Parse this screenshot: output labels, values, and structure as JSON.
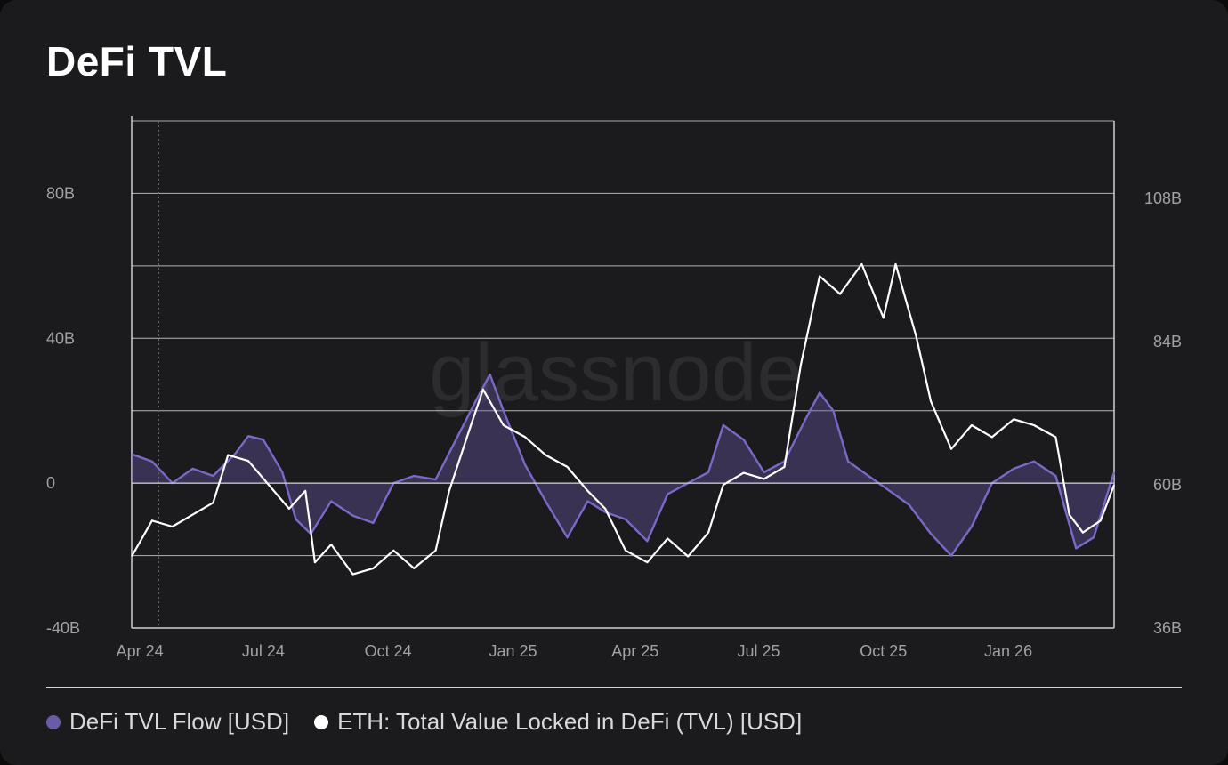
{
  "title": "DeFi TVL",
  "watermark": "glassnode",
  "colors": {
    "background": "#1b1b1d",
    "flow": "#6b5aa8",
    "tvl": "#ffffff",
    "grid": "#cfcfd4"
  },
  "legend": [
    {
      "label": "DeFi TVL Flow [USD]",
      "color": "#6b5aa8"
    },
    {
      "label": "ETH: Total Value Locked in DeFi (TVL) [USD]",
      "color": "#ffffff"
    }
  ],
  "chart_data": {
    "type": "line",
    "x_tick_labels": [
      "Apr 24",
      "Jul 24",
      "Oct 24",
      "Jan 25",
      "Apr 25",
      "Jul 25",
      "Oct 25",
      "Jan 26"
    ],
    "x_range": [
      "2024-03-26",
      "2026-03-20"
    ],
    "y_left_tick_labels": [
      "-40B",
      "0",
      "40B",
      "80B"
    ],
    "y_left_range": [
      -40,
      100
    ],
    "y_right_tick_labels": [
      "36B",
      "60B",
      "84B",
      "108B"
    ],
    "y_right_range": [
      36,
      121
    ],
    "grid": true,
    "legend_position": "bottom-left",
    "series": [
      {
        "name": "DeFi TVL Flow [USD]",
        "axis": "left",
        "style": "area",
        "points": [
          [
            "2024-03-26",
            8
          ],
          [
            "2024-04-10",
            6
          ],
          [
            "2024-04-25",
            0
          ],
          [
            "2024-05-10",
            4
          ],
          [
            "2024-05-25",
            2
          ],
          [
            "2024-06-10",
            8
          ],
          [
            "2024-06-20",
            13
          ],
          [
            "2024-07-01",
            12
          ],
          [
            "2024-07-15",
            3
          ],
          [
            "2024-07-25",
            -10
          ],
          [
            "2024-08-05",
            -14
          ],
          [
            "2024-08-20",
            -5
          ],
          [
            "2024-09-05",
            -9
          ],
          [
            "2024-09-20",
            -11
          ],
          [
            "2024-10-05",
            0
          ],
          [
            "2024-10-20",
            2
          ],
          [
            "2024-11-05",
            1
          ],
          [
            "2024-11-20",
            12
          ],
          [
            "2024-12-05",
            23
          ],
          [
            "2024-12-15",
            30
          ],
          [
            "2024-12-25",
            20
          ],
          [
            "2025-01-10",
            5
          ],
          [
            "2025-01-25",
            -5
          ],
          [
            "2025-02-10",
            -15
          ],
          [
            "2025-02-25",
            -5
          ],
          [
            "2025-03-10",
            -8
          ],
          [
            "2025-03-25",
            -10
          ],
          [
            "2025-04-10",
            -16
          ],
          [
            "2025-04-25",
            -3
          ],
          [
            "2025-05-10",
            0
          ],
          [
            "2025-05-25",
            3
          ],
          [
            "2025-06-05",
            16
          ],
          [
            "2025-06-20",
            12
          ],
          [
            "2025-07-05",
            3
          ],
          [
            "2025-07-20",
            6
          ],
          [
            "2025-08-05",
            18
          ],
          [
            "2025-08-15",
            25
          ],
          [
            "2025-08-25",
            20
          ],
          [
            "2025-09-05",
            6
          ],
          [
            "2025-09-20",
            2
          ],
          [
            "2025-10-05",
            -2
          ],
          [
            "2025-10-20",
            -6
          ],
          [
            "2025-11-05",
            -14
          ],
          [
            "2025-11-20",
            -20
          ],
          [
            "2025-12-05",
            -12
          ],
          [
            "2025-12-20",
            0
          ],
          [
            "2026-01-05",
            4
          ],
          [
            "2026-01-20",
            6
          ],
          [
            "2026-02-05",
            2
          ],
          [
            "2026-02-20",
            -18
          ],
          [
            "2026-03-05",
            -15
          ],
          [
            "2026-03-20",
            3
          ]
        ]
      },
      {
        "name": "ETH: Total Value Locked in DeFi (TVL) [USD]",
        "axis": "right",
        "style": "line",
        "points": [
          [
            "2024-03-26",
            48
          ],
          [
            "2024-04-10",
            54
          ],
          [
            "2024-04-25",
            53
          ],
          [
            "2024-05-10",
            55
          ],
          [
            "2024-05-25",
            57
          ],
          [
            "2024-06-05",
            65
          ],
          [
            "2024-06-20",
            64
          ],
          [
            "2024-07-05",
            60
          ],
          [
            "2024-07-20",
            56
          ],
          [
            "2024-08-01",
            59
          ],
          [
            "2024-08-08",
            47
          ],
          [
            "2024-08-20",
            50
          ],
          [
            "2024-09-05",
            45
          ],
          [
            "2024-09-20",
            46
          ],
          [
            "2024-10-05",
            49
          ],
          [
            "2024-10-20",
            46
          ],
          [
            "2024-11-05",
            49
          ],
          [
            "2024-11-15",
            59
          ],
          [
            "2024-12-01",
            70
          ],
          [
            "2024-12-10",
            76
          ],
          [
            "2024-12-25",
            70
          ],
          [
            "2025-01-10",
            68
          ],
          [
            "2025-01-25",
            65
          ],
          [
            "2025-02-10",
            63
          ],
          [
            "2025-02-25",
            59
          ],
          [
            "2025-03-10",
            56
          ],
          [
            "2025-03-25",
            49
          ],
          [
            "2025-04-10",
            47
          ],
          [
            "2025-04-25",
            51
          ],
          [
            "2025-05-10",
            48
          ],
          [
            "2025-05-25",
            52
          ],
          [
            "2025-06-05",
            60
          ],
          [
            "2025-06-20",
            62
          ],
          [
            "2025-07-05",
            61
          ],
          [
            "2025-07-20",
            63
          ],
          [
            "2025-08-01",
            80
          ],
          [
            "2025-08-15",
            95
          ],
          [
            "2025-08-30",
            92
          ],
          [
            "2025-09-15",
            97
          ],
          [
            "2025-10-01",
            88
          ],
          [
            "2025-10-10",
            97
          ],
          [
            "2025-10-25",
            85
          ],
          [
            "2025-11-05",
            74
          ],
          [
            "2025-11-20",
            66
          ],
          [
            "2025-12-05",
            70
          ],
          [
            "2025-12-20",
            68
          ],
          [
            "2026-01-05",
            71
          ],
          [
            "2026-01-20",
            70
          ],
          [
            "2026-02-05",
            68
          ],
          [
            "2026-02-15",
            55
          ],
          [
            "2026-02-25",
            52
          ],
          [
            "2026-03-10",
            54
          ],
          [
            "2026-03-20",
            60
          ]
        ]
      }
    ]
  }
}
